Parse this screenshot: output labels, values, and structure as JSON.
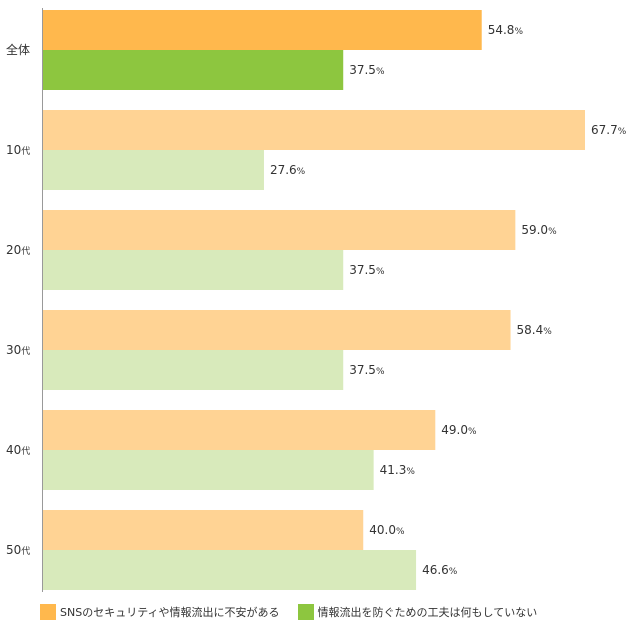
{
  "colors": {
    "series1_main": "#ffb84d",
    "series1_light": "#ffd394",
    "series2_main": "#8dc63f",
    "series2_light": "#d8eabb",
    "axis": "#999999"
  },
  "chart_data": {
    "type": "bar",
    "orientation": "horizontal",
    "xlim": [
      0,
      67.7
    ],
    "grid": false,
    "legend_position": "bottom-left",
    "unit": "%",
    "categories": [
      {
        "main": "全体",
        "suffix": ""
      },
      {
        "main": "10",
        "suffix": "代"
      },
      {
        "main": "20",
        "suffix": "代"
      },
      {
        "main": "30",
        "suffix": "代"
      },
      {
        "main": "40",
        "suffix": "代"
      },
      {
        "main": "50",
        "suffix": "代"
      }
    ],
    "series": [
      {
        "name": "SNSのセキュリティや情報流出に不安がある",
        "values": [
          54.8,
          67.7,
          59.0,
          58.4,
          49.0,
          40.0
        ],
        "labels": [
          "54.8",
          "67.7",
          "59.0",
          "58.4",
          "49.0",
          "40.0"
        ]
      },
      {
        "name": "情報流出を防ぐための工夫は何もしていない",
        "values": [
          37.5,
          27.6,
          37.5,
          37.5,
          41.3,
          46.6
        ],
        "labels": [
          "37.5",
          "27.6",
          "37.5",
          "37.5",
          "41.3",
          "46.6"
        ]
      }
    ]
  }
}
